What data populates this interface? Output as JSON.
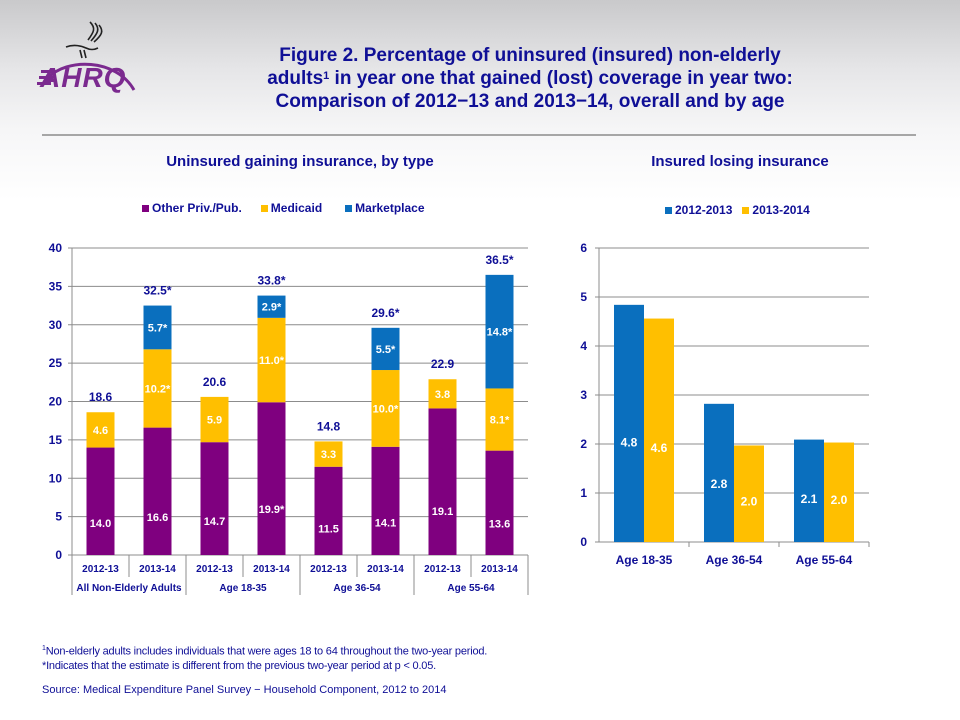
{
  "header": {
    "title_line1": "Figure 2. Percentage of uninsured (insured) non-elderly",
    "title_line2_a": "adults",
    "title_line2_sup": "1",
    "title_line2_b": " in year one that gained (lost) coverage in year two:",
    "title_line3": "Comparison of 2012−13 and 2013−14, overall and by age",
    "logo_text": "AHRQ",
    "logo_icon": "hhs-eagle-icon"
  },
  "colors": {
    "title_text": "#0f0f96",
    "other_priv_pub": "#7f007f",
    "medicaid": "#ffbf00",
    "marketplace": "#0a6fbe",
    "year_2012_2013": "#0a6fbe",
    "year_2013_2014": "#ffbf00",
    "logo": "#7b2a8f"
  },
  "chart_data": [
    {
      "type": "bar",
      "stacked": true,
      "title": "Uninsured gaining insurance, by type",
      "xlabel": "",
      "ylabel": "",
      "ylim": [
        0,
        40
      ],
      "yticks": [
        0,
        5,
        10,
        15,
        20,
        25,
        30,
        35,
        40
      ],
      "grid": true,
      "legend_position": "top",
      "categories": [
        "2012-13",
        "2013-14",
        "2012-13",
        "2013-14",
        "2012-13",
        "2013-14",
        "2012-13",
        "2013-14"
      ],
      "groups": [
        {
          "label": "All Non-Elderly Adults",
          "span": 2
        },
        {
          "label": "Age 18-35",
          "span": 2
        },
        {
          "label": "Age 36-54",
          "span": 2
        },
        {
          "label": "Age 55-64",
          "span": 2
        }
      ],
      "series": [
        {
          "name": "Other Priv./Pub.",
          "values": [
            14.0,
            16.6,
            14.7,
            19.9,
            11.5,
            14.1,
            19.1,
            13.6
          ],
          "labels": [
            "14.0",
            "16.6",
            "14.7",
            "19.9*",
            "11.5",
            "14.1",
            "19.1",
            "13.6"
          ]
        },
        {
          "name": "Medicaid",
          "values": [
            4.6,
            10.2,
            5.9,
            11.0,
            3.3,
            10.0,
            3.8,
            8.1
          ],
          "labels": [
            "4.6",
            "10.2*",
            "5.9",
            "11.0*",
            "3.3",
            "10.0*",
            "3.8",
            "8.1*"
          ]
        },
        {
          "name": "Marketplace",
          "values": [
            0,
            5.7,
            0,
            2.9,
            0,
            5.5,
            0,
            14.8
          ],
          "labels": [
            "",
            "5.7*",
            "",
            "2.9*",
            "",
            "5.5*",
            "",
            "14.8*"
          ]
        }
      ],
      "totals": [
        18.6,
        32.5,
        20.6,
        33.8,
        14.8,
        29.6,
        22.9,
        36.5
      ],
      "total_labels": [
        "18.6",
        "32.5*",
        "20.6",
        "33.8*",
        "14.8",
        "29.6*",
        "22.9",
        "36.5*"
      ]
    },
    {
      "type": "bar",
      "stacked": false,
      "title": "Insured losing insurance",
      "xlabel": "",
      "ylabel": "",
      "ylim": [
        0,
        6
      ],
      "yticks": [
        0,
        1,
        2,
        3,
        4,
        5,
        6
      ],
      "grid": true,
      "legend_position": "top",
      "categories": [
        "Age 18-35",
        "Age 36-54",
        "Age 55-64"
      ],
      "series": [
        {
          "name": "2012-2013",
          "values": [
            4.84,
            2.82,
            2.09
          ],
          "labels": [
            "4.8",
            "2.8",
            "2.1"
          ]
        },
        {
          "name": "2013-2014",
          "values": [
            4.56,
            1.97,
            2.03
          ],
          "labels": [
            "4.6",
            "2.0",
            "2.0"
          ]
        }
      ]
    }
  ],
  "footnotes": {
    "note1_sup": "1",
    "note1": "Non-elderly adults includes individuals that were ages 18 to 64 throughout the two-year period.",
    "note2": "*Indicates that the estimate is different from the previous two-year period at p < 0.05.",
    "source": "Source:  Medical Expenditure Panel Survey − Household Component, 2012 to 2014"
  }
}
